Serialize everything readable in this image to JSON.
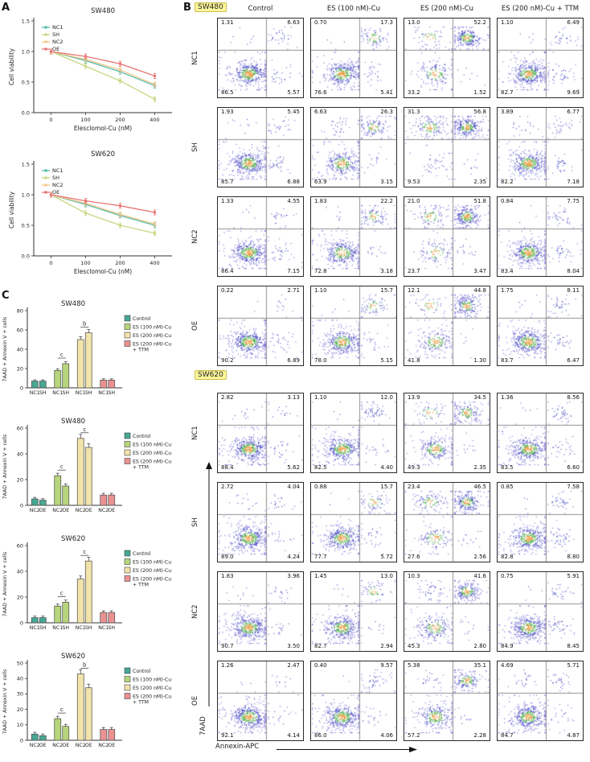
{
  "palette": {
    "treatment_colors": [
      "#46a894",
      "#b7d57c",
      "#f2e3ab",
      "#ea9191"
    ],
    "highlight": "#fcf69c"
  },
  "panel_a": {
    "label": "A"
  },
  "panel_b": {
    "label": "B",
    "col_headers": [
      "Control",
      "ES (100 nM)-Cu",
      "ES (200 nM)-Cu",
      "ES (200 nM)-Cu + TTM"
    ],
    "x_axis_label": "Annexin-APC",
    "y_axis_label": "7AAD",
    "groups": [
      {
        "cell_line": "SW480",
        "rows": [
          {
            "label": "NC1",
            "plots": [
              [
                "1.31",
                "6.63",
                "86.5",
                "5.57"
              ],
              [
                "0.70",
                "17.3",
                "76.6",
                "5.41"
              ],
              [
                "13.0",
                "52.2",
                "33.2",
                "1.52"
              ],
              [
                "1.10",
                "6.49",
                "82.7",
                "9.69"
              ]
            ]
          },
          {
            "label": "SH",
            "plots": [
              [
                "1.93",
                "5.45",
                "85.7",
                "6.88"
              ],
              [
                "6.63",
                "26.3",
                "63.9",
                "3.15"
              ],
              [
                "31.3",
                "56.8",
                "9.53",
                "2.35"
              ],
              [
                "3.89",
                "6.77",
                "82.2",
                "7.18"
              ]
            ]
          },
          {
            "label": "NC2",
            "plots": [
              [
                "1.33",
                "4.55",
                "86.4",
                "7.15"
              ],
              [
                "1.83",
                "22.2",
                "72.8",
                "3.18"
              ],
              [
                "21.0",
                "51.8",
                "23.7",
                "3.47"
              ],
              [
                "0.84",
                "7.75",
                "83.4",
                "8.04"
              ]
            ]
          },
          {
            "label": "OE",
            "plots": [
              [
                "0.22",
                "2.71",
                "90.2",
                "6.89"
              ],
              [
                "1.10",
                "15.7",
                "78.0",
                "5.15"
              ],
              [
                "12.1",
                "44.8",
                "41.8",
                "1.30"
              ],
              [
                "1.75",
                "8.11",
                "83.7",
                "6.47"
              ]
            ]
          }
        ]
      },
      {
        "cell_line": "SW620",
        "rows": [
          {
            "label": "NC1",
            "plots": [
              [
                "2.82",
                "3.13",
                "88.4",
                "5.62"
              ],
              [
                "1.10",
                "12.0",
                "82.5",
                "4.40"
              ],
              [
                "13.9",
                "34.5",
                "49.3",
                "2.35"
              ],
              [
                "1.36",
                "8.56",
                "83.5",
                "6.60"
              ]
            ]
          },
          {
            "label": "SH",
            "plots": [
              [
                "2.72",
                "4.04",
                "89.0",
                "4.24"
              ],
              [
                "0.88",
                "15.7",
                "77.7",
                "5.72"
              ],
              [
                "23.4",
                "46.5",
                "27.6",
                "2.56"
              ],
              [
                "0.85",
                "7.58",
                "82.8",
                "8.80"
              ]
            ]
          },
          {
            "label": "NC2",
            "plots": [
              [
                "1.83",
                "3.96",
                "90.7",
                "3.50"
              ],
              [
                "1.45",
                "13.0",
                "82.7",
                "2.94"
              ],
              [
                "10.3",
                "41.6",
                "45.3",
                "2.80"
              ],
              [
                "0.75",
                "5.91",
                "84.9",
                "8.45"
              ]
            ]
          },
          {
            "label": "OE",
            "plots": [
              [
                "1.26",
                "2.47",
                "92.1",
                "4.14"
              ],
              [
                "0.40",
                "9.57",
                "86.0",
                "4.06"
              ],
              [
                "5.38",
                "35.1",
                "57.2",
                "2.28"
              ],
              [
                "4.69",
                "5.71",
                "84.7",
                "4.87"
              ]
            ]
          }
        ]
      }
    ]
  },
  "panel_c": {
    "label": "C",
    "legend": [
      "Control",
      "ES (100 nM)-Cu",
      "ES (200 nM)-Cu",
      "ES (200 nM)-Cu + TTM"
    ]
  },
  "chart_data": [
    {
      "type": "line",
      "id": "line-chart-0",
      "title": "SW480",
      "xlabel": "Elesclomol-Cu (nM)",
      "ylabel": "Cell viability",
      "categories": [
        "0",
        "100",
        "200",
        "400"
      ],
      "ylim": [
        0,
        1.5
      ],
      "yticks": [
        "0.0",
        "0.5",
        "1.0",
        "1.5"
      ],
      "series": [
        {
          "name": "NC1",
          "color": "#56b9a8",
          "values": [
            1.0,
            0.85,
            0.67,
            0.44
          ]
        },
        {
          "name": "SH",
          "color": "#c6d783",
          "values": [
            1.0,
            0.76,
            0.52,
            0.22
          ]
        },
        {
          "name": "NC2",
          "color": "#f3c789",
          "values": [
            1.0,
            0.87,
            0.7,
            0.46
          ]
        },
        {
          "name": "OE",
          "color": "#e77472",
          "values": [
            1.0,
            0.92,
            0.8,
            0.6
          ]
        }
      ]
    },
    {
      "type": "line",
      "id": "line-chart-1",
      "title": "SW620",
      "xlabel": "Elesclomol-Cu (nM)",
      "ylabel": "Cell viability",
      "categories": [
        "0",
        "100",
        "200",
        "400"
      ],
      "ylim": [
        0,
        1.5
      ],
      "yticks": [
        "0.0",
        "0.5",
        "1.0",
        "1.5"
      ],
      "series": [
        {
          "name": "NC1",
          "color": "#56b9a8",
          "values": [
            1.0,
            0.84,
            0.66,
            0.5
          ]
        },
        {
          "name": "SH",
          "color": "#c6d783",
          "values": [
            1.0,
            0.7,
            0.5,
            0.37
          ]
        },
        {
          "name": "NC2",
          "color": "#f3c789",
          "values": [
            1.0,
            0.86,
            0.68,
            0.52
          ]
        },
        {
          "name": "OE",
          "color": "#e77472",
          "values": [
            1.0,
            0.9,
            0.82,
            0.71
          ]
        }
      ]
    },
    {
      "type": "bar",
      "id": "bar-chart-0",
      "title": "SW480",
      "ylabel": "7AAD + Annexin V + cells",
      "bar_labels": [
        "NC1",
        "SH"
      ],
      "ylim": [
        0,
        80
      ],
      "yticks": [
        0,
        20,
        40,
        60,
        80
      ],
      "groups": [
        {
          "treatment": "Control",
          "values": [
            7,
            7
          ],
          "sig": ""
        },
        {
          "treatment": "ES (100 nM)-Cu",
          "values": [
            18,
            25
          ],
          "sig": "c"
        },
        {
          "treatment": "ES (200 nM)-Cu",
          "values": [
            50,
            57
          ],
          "sig": "b"
        },
        {
          "treatment": "ES (200 nM)-Cu + TTM",
          "values": [
            8,
            8
          ],
          "sig": ""
        }
      ]
    },
    {
      "type": "bar",
      "id": "bar-chart-1",
      "title": "SW480",
      "ylabel": "7AAD + Annexin V + cells",
      "bar_labels": [
        "NC2",
        "OE"
      ],
      "ylim": [
        0,
        60
      ],
      "yticks": [
        0,
        20,
        40,
        60
      ],
      "groups": [
        {
          "treatment": "Control",
          "values": [
            5,
            4
          ],
          "sig": ""
        },
        {
          "treatment": "ES (100 nM)-Cu",
          "values": [
            23,
            15
          ],
          "sig": "c"
        },
        {
          "treatment": "ES (200 nM)-Cu",
          "values": [
            52,
            45
          ],
          "sig": "c"
        },
        {
          "treatment": "ES (200 nM)-Cu + TTM",
          "values": [
            8,
            8
          ],
          "sig": ""
        }
      ]
    },
    {
      "type": "bar",
      "id": "bar-chart-2",
      "title": "SW620",
      "ylabel": "7AAD + Annexin V + cells",
      "bar_labels": [
        "NC1",
        "SH"
      ],
      "ylim": [
        0,
        60
      ],
      "yticks": [
        0,
        20,
        40,
        60
      ],
      "groups": [
        {
          "treatment": "Control",
          "values": [
            4,
            4
          ],
          "sig": ""
        },
        {
          "treatment": "ES (100 nM)-Cu",
          "values": [
            13,
            16
          ],
          "sig": "c"
        },
        {
          "treatment": "ES (200 nM)-Cu",
          "values": [
            34,
            48
          ],
          "sig": "c"
        },
        {
          "treatment": "ES (200 nM)-Cu + TTM",
          "values": [
            8,
            8
          ],
          "sig": ""
        }
      ]
    },
    {
      "type": "bar",
      "id": "bar-chart-3",
      "title": "SW620",
      "ylabel": "7AAD + Annexin V + cells",
      "bar_labels": [
        "NC2",
        "OE"
      ],
      "ylim": [
        0,
        50
      ],
      "yticks": [
        0,
        10,
        20,
        30,
        40,
        50
      ],
      "groups": [
        {
          "treatment": "Control",
          "values": [
            4,
            3
          ],
          "sig": ""
        },
        {
          "treatment": "ES (100 nM)-Cu",
          "values": [
            14,
            9
          ],
          "sig": "c"
        },
        {
          "treatment": "ES (200 nM)-Cu",
          "values": [
            43,
            34
          ],
          "sig": "b"
        },
        {
          "treatment": "ES (200 nM)-Cu + TTM",
          "values": [
            7,
            7
          ],
          "sig": ""
        }
      ]
    }
  ]
}
